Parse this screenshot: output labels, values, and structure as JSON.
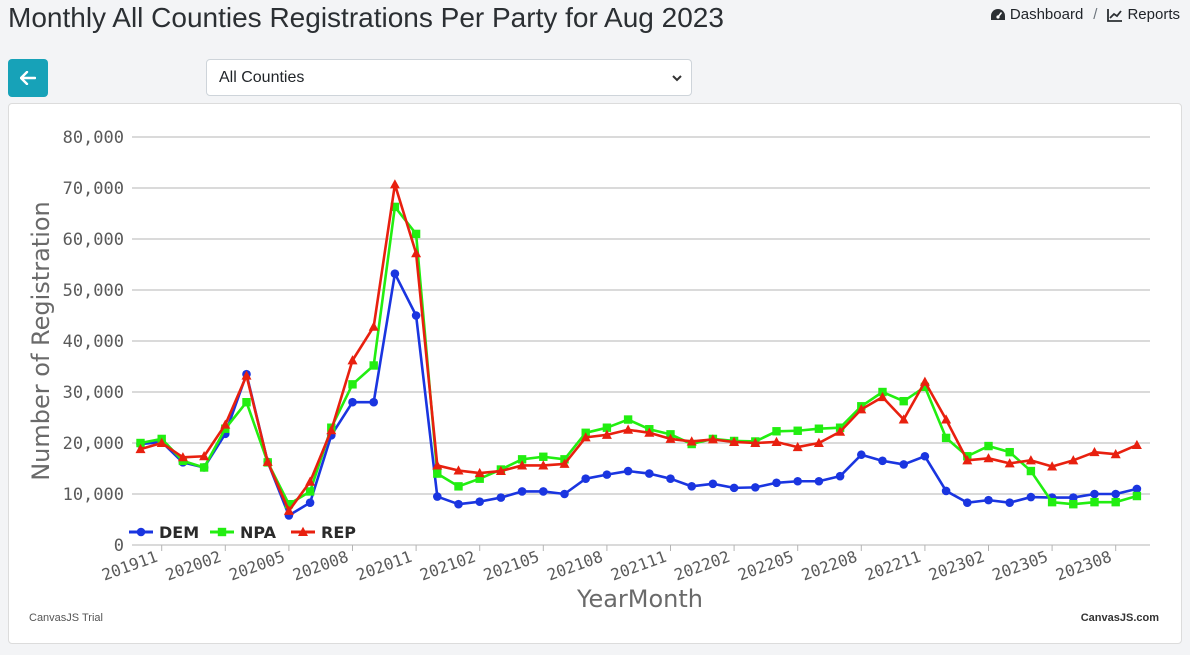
{
  "page": {
    "title": "Monthly All Counties Registrations Per Party for Aug 2023"
  },
  "nav": {
    "dashboard_label": "Dashboard",
    "separator": "/",
    "reports_label": "Reports"
  },
  "controls": {
    "back_icon": "arrow-left-icon",
    "county_selected": "All Counties"
  },
  "colors": {
    "accent": "#17a2b8",
    "DEM": "#1a35e0",
    "NPA": "#22ee11",
    "REP": "#e8200f"
  },
  "credits": {
    "left": "CanvasJS Trial",
    "right": "CanvasJS.com"
  },
  "chart_data": {
    "type": "line",
    "xlabel": "YearMonth",
    "ylabel": "Number of Registration",
    "ylim": [
      0,
      80000
    ],
    "yticks": [
      0,
      10000,
      20000,
      30000,
      40000,
      50000,
      60000,
      70000,
      80000
    ],
    "ytick_labels": [
      "0",
      "10,000",
      "20,000",
      "30,000",
      "40,000",
      "50,000",
      "60,000",
      "70,000",
      "80,000"
    ],
    "grid": true,
    "legend_position": "bottom-left",
    "x": [
      "201910",
      "201911",
      "201912",
      "202001",
      "202002",
      "202003",
      "202004",
      "202005",
      "202006",
      "202007",
      "202008",
      "202009",
      "202010",
      "202011",
      "202012",
      "202101",
      "202102",
      "202103",
      "202104",
      "202105",
      "202106",
      "202107",
      "202108",
      "202109",
      "202110",
      "202111",
      "202112",
      "202201",
      "202202",
      "202203",
      "202204",
      "202205",
      "202206",
      "202207",
      "202208",
      "202209",
      "202210",
      "202211",
      "202212",
      "202301",
      "202302",
      "202303",
      "202304",
      "202305",
      "202306",
      "202307",
      "202308",
      "202309"
    ],
    "x_tick_labels": [
      "201911",
      "202002",
      "202005",
      "202008",
      "202011",
      "202102",
      "202105",
      "202108",
      "202111",
      "202202",
      "202205",
      "202208",
      "202211",
      "202302",
      "202305",
      "202308"
    ],
    "series": [
      {
        "name": "DEM",
        "marker": "circle",
        "values": [
          19800,
          20200,
          16200,
          15200,
          21800,
          33500,
          16300,
          5800,
          8300,
          21500,
          28000,
          28000,
          53200,
          45000,
          9500,
          8000,
          8500,
          9300,
          10500,
          10500,
          10000,
          13000,
          13800,
          14500,
          14000,
          13000,
          11500,
          12000,
          11200,
          11300,
          12200,
          12500,
          12500,
          13500,
          17700,
          16500,
          15800,
          17400,
          10600,
          8300,
          8800,
          8300,
          9400,
          9300,
          9300,
          10000,
          10000,
          11000
        ]
      },
      {
        "name": "NPA",
        "marker": "square",
        "values": [
          20000,
          20800,
          16500,
          15200,
          22800,
          28000,
          16200,
          8000,
          10500,
          23000,
          31500,
          35200,
          66300,
          61000,
          14000,
          11500,
          13000,
          14800,
          16800,
          17300,
          16800,
          22000,
          23000,
          24600,
          22700,
          21700,
          19800,
          20800,
          20400,
          20300,
          22300,
          22400,
          22800,
          23000,
          27200,
          30000,
          28200,
          31000,
          21000,
          17400,
          19400,
          18200,
          14500,
          8400,
          8000,
          8400,
          8400,
          9600
        ]
      },
      {
        "name": "REP",
        "marker": "triangle",
        "values": [
          18800,
          20000,
          17200,
          17400,
          23600,
          33200,
          16300,
          6700,
          12400,
          22500,
          36200,
          42800,
          70700,
          57200,
          15600,
          14600,
          14100,
          14500,
          15600,
          15600,
          15900,
          21100,
          21600,
          22600,
          22000,
          20800,
          20300,
          20700,
          20200,
          20000,
          20200,
          19200,
          20000,
          22200,
          26600,
          29000,
          24600,
          32000,
          24600,
          16600,
          17000,
          16000,
          16600,
          15400,
          16600,
          18200,
          17800,
          19600
        ]
      }
    ]
  }
}
